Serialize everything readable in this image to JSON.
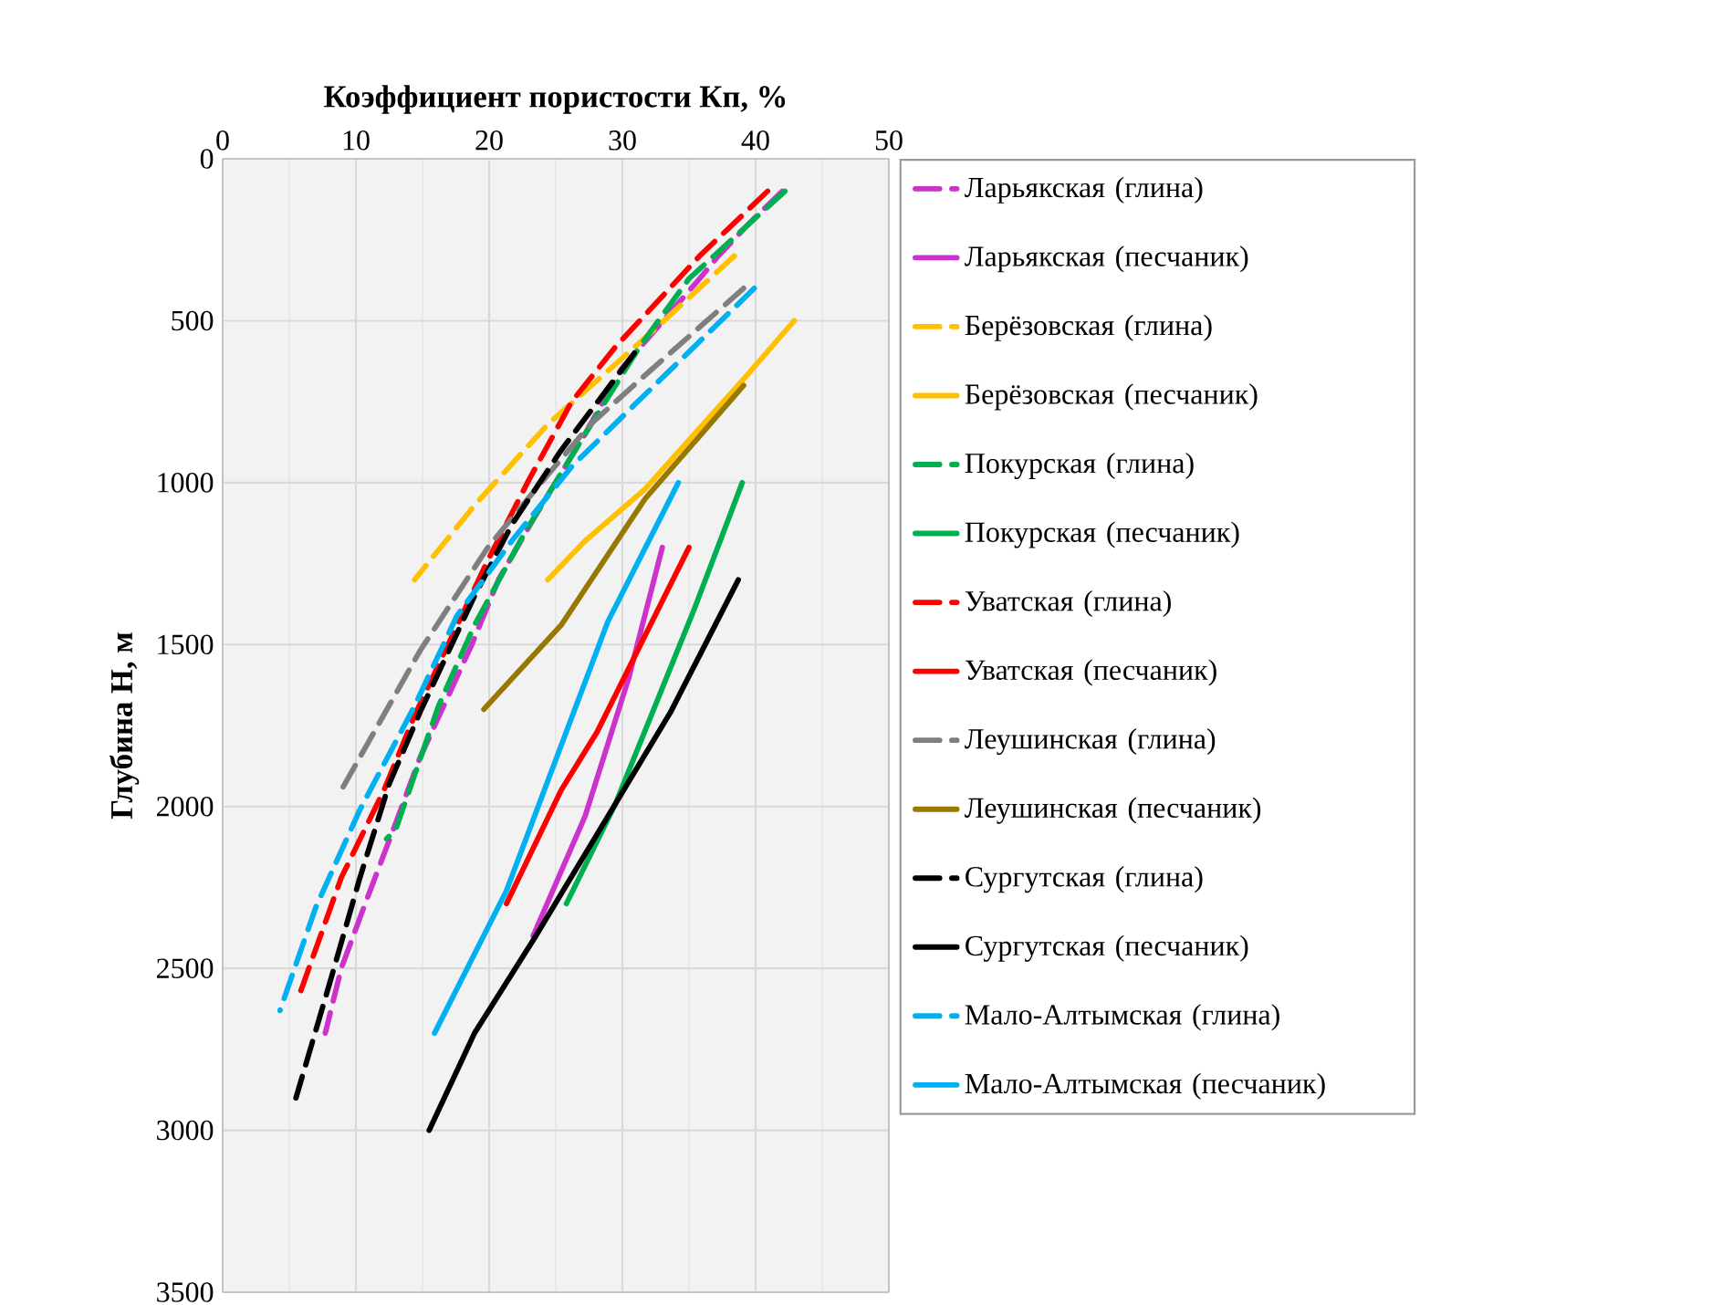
{
  "chart_data": {
    "type": "line",
    "xlabel": "Коэффициент пористости Кп, %",
    "ylabel": "Глубина H, м",
    "xlim": [
      0,
      50
    ],
    "xticks": [
      0,
      10,
      20,
      30,
      40,
      50
    ],
    "ylim": [
      3500,
      0
    ],
    "yticks": [
      0,
      500,
      1000,
      1500,
      2000,
      2500,
      3000,
      3500
    ],
    "grid": true,
    "legend": "right",
    "marker": "none",
    "series": [
      {
        "name": "Ларьякская (глина)",
        "color": "#cc33cc",
        "line_style": "dashed",
        "x": [
          42,
          39.5,
          37.2,
          35.8,
          29.9,
          27.2,
          23.5,
          20.7,
          18.7,
          14.8,
          13,
          10.7,
          8.9,
          7.7
        ],
        "values": [
          100,
          200,
          300,
          370,
          650,
          850,
          1100,
          1300,
          1500,
          1850,
          2050,
          2300,
          2500,
          2700
        ]
      },
      {
        "name": "Ларьякская (песчаник)",
        "color": "#cc33cc",
        "line_style": "solid",
        "x": [
          33,
          30.5,
          27.2,
          23.3
        ],
        "values": [
          1200,
          1600,
          2030,
          2400
        ]
      },
      {
        "name": "Берёзовская (глина)",
        "color": "#ffc000",
        "line_style": "dashed",
        "x": [
          38.4,
          32.6,
          24.4,
          18.9,
          14.4
        ],
        "values": [
          300,
          520,
          820,
          1070,
          1300
        ]
      },
      {
        "name": "Берёзовская (песчаник)",
        "color": "#ffc000",
        "line_style": "solid",
        "x": [
          42.9,
          39.1,
          31.7,
          27.2,
          24.4
        ],
        "values": [
          500,
          680,
          1020,
          1180,
          1300
        ]
      },
      {
        "name": "Покурская (глина)",
        "color": "#00b050",
        "line_style": "dashed",
        "x": [
          42.2,
          35,
          31.3,
          27.2,
          22.6,
          18.9,
          16.2,
          13,
          12.3
        ],
        "values": [
          100,
          370,
          580,
          850,
          1160,
          1440,
          1690,
          2070,
          2100
        ]
      },
      {
        "name": "Покурская (песчаник)",
        "color": "#00b050",
        "line_style": "solid",
        "x": [
          39,
          35.4,
          29.5,
          25.8
        ],
        "values": [
          1000,
          1390,
          1990,
          2300
        ]
      },
      {
        "name": "Уватская (глина)",
        "color": "#ff0000",
        "line_style": "dashed",
        "x": [
          40.9,
          35.8,
          29.5,
          26.2,
          23,
          19.9,
          14.4,
          12.1,
          8.9,
          5.6
        ],
        "values": [
          100,
          300,
          580,
          750,
          990,
          1240,
          1720,
          1950,
          2220,
          2600
        ]
      },
      {
        "name": "Уватская (песчаник)",
        "color": "#ff0000",
        "line_style": "solid",
        "x": [
          35,
          28.1,
          25.4,
          21.3
        ],
        "values": [
          1200,
          1770,
          1950,
          2300
        ]
      },
      {
        "name": "Леушинская (глина)",
        "color": "#7f7f7f",
        "line_style": "dashed",
        "x": [
          39.1,
          32.2,
          27.6,
          23.5,
          19.9,
          14.8,
          8.9
        ],
        "values": [
          400,
          650,
          820,
          1020,
          1200,
          1520,
          1950
        ]
      },
      {
        "name": "Леушинская (песчаник)",
        "color": "#987800",
        "line_style": "solid",
        "x": [
          39.1,
          31.7,
          25.4,
          19.6
        ],
        "values": [
          700,
          1050,
          1440,
          1700
        ]
      },
      {
        "name": "Сургутская (глина)",
        "color": "#000000",
        "line_style": "dashed",
        "x": [
          30.9,
          25.4,
          21.7,
          18.9,
          14.8,
          12.5,
          10.3,
          8,
          5.5
        ],
        "values": [
          600,
          900,
          1130,
          1350,
          1710,
          1930,
          2220,
          2550,
          2900
        ]
      },
      {
        "name": "Сургутская (песчаник)",
        "color": "#000000",
        "line_style": "solid",
        "x": [
          38.7,
          33.6,
          29.5,
          23.5,
          18.9,
          15.5
        ],
        "values": [
          1300,
          1710,
          1990,
          2400,
          2700,
          3000
        ]
      },
      {
        "name": "Мало-Алтымская (глина)",
        "color": "#00b0f0",
        "line_style": "dashed",
        "x": [
          39.9,
          35.4,
          30.9,
          26.2,
          21.7,
          17.6,
          14.4,
          10.3,
          7,
          4.3
        ],
        "values": [
          400,
          580,
          760,
          950,
          1180,
          1410,
          1690,
          2010,
          2310,
          2630
        ]
      },
      {
        "name": "Мало-Алтымская (песчаник)",
        "color": "#00b0f0",
        "line_style": "solid",
        "x": [
          34.2,
          28.9,
          21.3,
          15.9
        ],
        "values": [
          1000,
          1430,
          2260,
          2700
        ]
      }
    ]
  }
}
